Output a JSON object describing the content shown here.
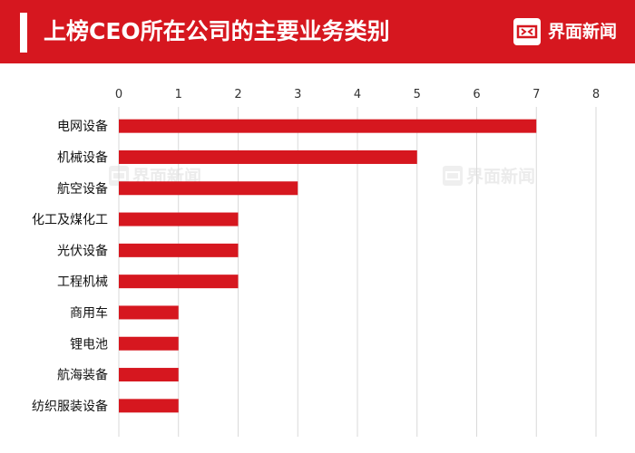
{
  "header": {
    "title": "上榜CEO所在公司的主要业务类别",
    "brand": "界面新闻",
    "background_color": "#d6171f"
  },
  "watermark": {
    "text": "界面新闻"
  },
  "chart_data": {
    "type": "bar",
    "orientation": "horizontal",
    "categories": [
      "电网设备",
      "机械设备",
      "航空设备",
      "化工及煤化工",
      "光伏设备",
      "工程机械",
      "商用车",
      "锂电池",
      "航海装备",
      "纺织服装设备"
    ],
    "values": [
      7,
      5,
      3,
      2,
      2,
      2,
      1,
      1,
      1,
      1
    ],
    "ticks": [
      0,
      1,
      2,
      3,
      4,
      5,
      6,
      7,
      8
    ],
    "xlim": [
      0,
      8
    ],
    "xaxis_position": "top",
    "grid": "vertical",
    "bar_color": "#d6171f",
    "title": "",
    "xlabel": "",
    "ylabel": ""
  }
}
